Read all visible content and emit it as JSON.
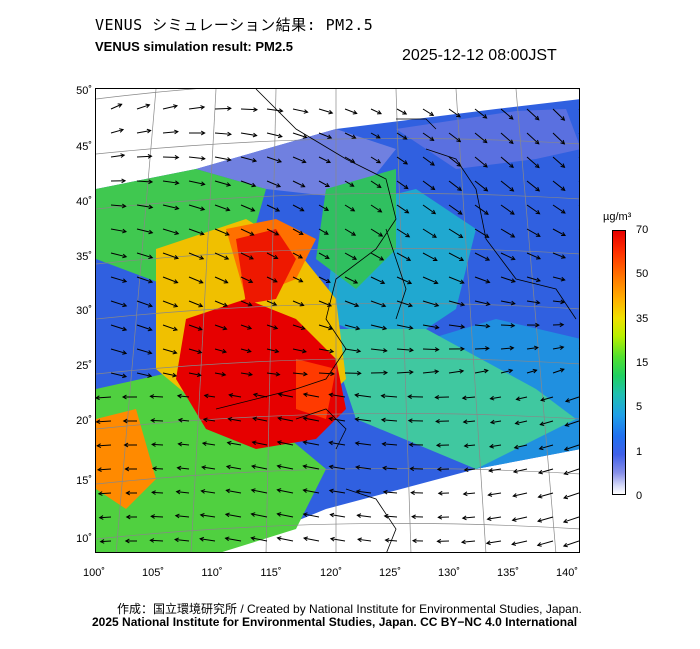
{
  "header": {
    "title_jp": "VENUS シミュレーション結果: PM2.5",
    "title_en": "VENUS simulation result: PM2.5",
    "timestamp": "2025-12-12 08:00JST"
  },
  "axes": {
    "lat_labels": [
      "50˚",
      "45˚",
      "40˚",
      "35˚",
      "30˚",
      "25˚",
      "20˚",
      "15˚",
      "10˚"
    ],
    "lon_labels": [
      "100˚",
      "105˚",
      "110˚",
      "115˚",
      "120˚",
      "125˚",
      "130˚",
      "135˚",
      "140˚"
    ]
  },
  "colorbar": {
    "unit": "µg/m³",
    "levels": [
      "70",
      "50",
      "35",
      "15",
      "5",
      "1",
      "0"
    ]
  },
  "credits": {
    "line1": "作成：国立環境研究所 / Created by National Institute for Environmental Studies, Japan.",
    "line2": "2025 National Institute for Environmental Studies, Japan. CC BY−NC 4.0 International"
  },
  "colors": {
    "very_high": "#e60000",
    "high": "#ff8c00",
    "medium": "#40d040",
    "low": "#2080e8",
    "very_low": "#3050d8",
    "land_line": "#000000"
  }
}
